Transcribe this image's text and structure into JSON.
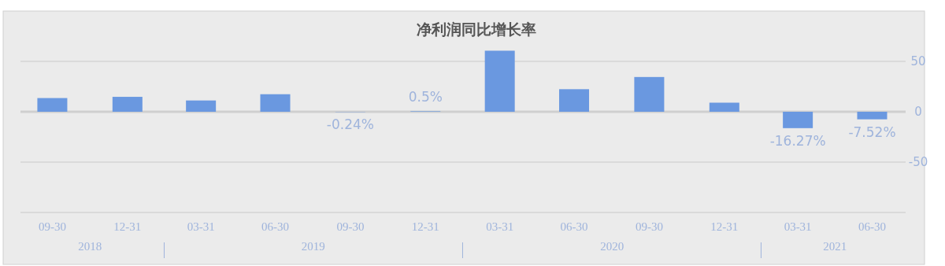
{
  "chart_data": {
    "type": "bar",
    "title": "净利润同比增长率",
    "x": [
      "2018-09-30",
      "2018-12-31",
      "2019-03-31",
      "2019-06-30",
      "2019-09-30",
      "2019-12-31",
      "2020-03-31",
      "2020-06-30",
      "2020-09-30",
      "2020-12-31",
      "2021-03-31",
      "2021-06-30"
    ],
    "values": [
      13.6,
      14.8,
      11.2,
      17.4,
      -0.24,
      0.5,
      60.6,
      22.4,
      34.5,
      9.0,
      -16.27,
      -7.52
    ],
    "value_labels": [
      null,
      null,
      null,
      null,
      "-0.24%",
      "0.5%",
      null,
      null,
      null,
      null,
      "-16.27%",
      "-7.52%"
    ],
    "color": "#6a98e0",
    "xlim": [
      "2018-08-22",
      "2021-08-10"
    ],
    "xticks": [
      {
        "value": "2018-09-30",
        "label": "09-30"
      },
      {
        "value": "2018-12-31",
        "label": "12-31"
      },
      {
        "value": "2019-03-31",
        "label": "03-31"
      },
      {
        "value": "2019-06-30",
        "label": "06-30"
      },
      {
        "value": "2019-09-30",
        "label": "09-30"
      },
      {
        "value": "2019-12-31",
        "label": "12-31"
      },
      {
        "value": "2020-03-31",
        "label": "03-31"
      },
      {
        "value": "2020-06-30",
        "label": "06-30"
      },
      {
        "value": "2020-09-30",
        "label": "09-30"
      },
      {
        "value": "2020-12-31",
        "label": "12-31"
      },
      {
        "value": "2021-03-31",
        "label": "03-31"
      },
      {
        "value": "2021-06-30",
        "label": "06-30"
      }
    ],
    "ylim": [
      -100,
      100
    ],
    "yticks": [
      {
        "value": -100,
        "label": null
      },
      -50,
      0,
      50
    ],
    "annotations": [
      "2018",
      "2019",
      "2020",
      "2021"
    ],
    "grid": "y"
  }
}
